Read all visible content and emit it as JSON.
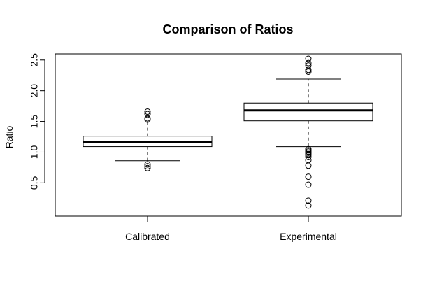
{
  "chart_data": {
    "type": "box",
    "title": "Comparison of Ratios",
    "xlabel": "",
    "ylabel": "Ratio",
    "ylim": [
      0.0,
      2.5
    ],
    "y_ticks": [
      0.5,
      1.0,
      1.5,
      2.0,
      2.5
    ],
    "y_tick_labels": [
      "0.5",
      "1.0",
      "1.5",
      "2.0",
      "2.5"
    ],
    "categories": [
      "Calibrated",
      "Experimental"
    ],
    "boxes": [
      {
        "category": "Calibrated",
        "whisker_low": 0.86,
        "q1": 1.09,
        "median": 1.17,
        "q3": 1.26,
        "whisker_high": 1.49,
        "outliers": [
          1.53,
          1.55,
          1.62,
          1.66,
          0.74,
          0.77,
          0.8
        ]
      },
      {
        "category": "Experimental",
        "whisker_low": 1.09,
        "q1": 1.51,
        "median": 1.68,
        "q3": 1.8,
        "whisker_high": 2.19,
        "outliers": [
          2.52,
          2.45,
          2.41,
          2.34,
          2.31,
          1.05,
          1.03,
          1.01,
          0.99,
          0.97,
          0.95,
          0.92,
          0.87,
          0.78,
          0.6,
          0.47,
          0.21,
          0.13
        ]
      }
    ]
  }
}
